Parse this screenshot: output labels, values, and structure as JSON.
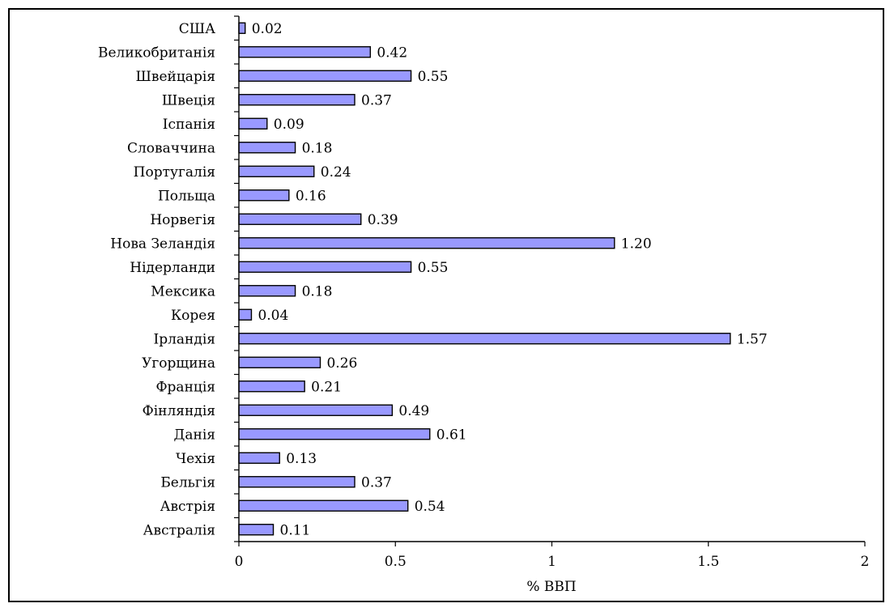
{
  "chart_data": {
    "type": "bar",
    "orientation": "horizontal",
    "title": "",
    "xlabel": "% ВВП",
    "ylabel": "",
    "xlim": [
      0,
      2
    ],
    "xticks": [
      "0",
      "0.5",
      "1",
      "1.5",
      "2"
    ],
    "xtick_values": [
      0,
      0.5,
      1,
      1.5,
      2
    ],
    "categories": [
      "США",
      "Великобританія",
      "Швейцарія",
      "Швеція",
      "Іспанія",
      "Словаччина",
      "Португалія",
      "Польща",
      "Норвегія",
      "Нова Зеландія",
      "Нідерланди",
      "Мексика",
      "Корея",
      "Ірландія",
      "Угорщина",
      "Франція",
      "Фінляндія",
      "Данія",
      "Чехія",
      "Бельгія",
      "Австрія",
      "Австралія"
    ],
    "values": [
      0.02,
      0.42,
      0.55,
      0.37,
      0.09,
      0.18,
      0.24,
      0.16,
      0.39,
      1.2,
      0.55,
      0.18,
      0.04,
      1.57,
      0.26,
      0.21,
      0.49,
      0.61,
      0.13,
      0.37,
      0.54,
      0.11
    ],
    "value_labels": [
      "0.02",
      "0.42",
      "0.55",
      "0.37",
      "0.09",
      "0.18",
      "0.24",
      "0.16",
      "0.39",
      "1.20",
      "0.55",
      "0.18",
      "0.04",
      "1.57",
      "0.26",
      "0.21",
      "0.49",
      "0.61",
      "0.13",
      "0.37",
      "0.54",
      "0.11"
    ],
    "bar_color": "#9999ff",
    "bar_border": "#000000",
    "grid": false,
    "legend": "none"
  }
}
